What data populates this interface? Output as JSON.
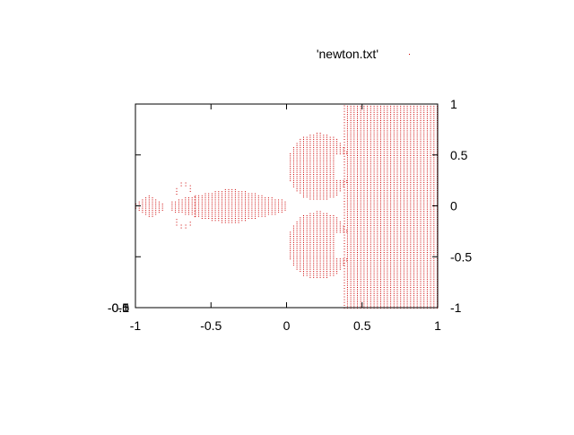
{
  "legend": {
    "label": "'newton.txt'",
    "color": "#cc0000",
    "placement": "top-right"
  },
  "chart_data": {
    "type": "scatter",
    "title": "",
    "xlabel": "",
    "ylabel": "",
    "xlim": [
      -1,
      1
    ],
    "ylim": [
      -1,
      1
    ],
    "grid": false,
    "x_ticks": [
      "-1",
      "-0.5",
      "0",
      "0.5",
      "1"
    ],
    "y_ticks": [
      "-1",
      "-0.5",
      "0",
      "0.5",
      "1"
    ],
    "left_ticks": [
      "-1",
      "-0.5",
      "0",
      "0.5",
      "1"
    ],
    "series": [
      {
        "name": "'newton.txt'",
        "color": "#cc0000",
        "regions": [
          {
            "shape": "rect",
            "x": [
              0.4,
              1.0
            ],
            "y": [
              -1.0,
              1.0
            ],
            "density": "dense"
          },
          {
            "shape": "lobe",
            "x": [
              0.0,
              0.42
            ],
            "y": [
              0.05,
              0.72
            ],
            "density": "medium"
          },
          {
            "shape": "lobe",
            "x": [
              0.0,
              0.42
            ],
            "y": [
              -0.72,
              -0.05
            ],
            "density": "medium"
          },
          {
            "shape": "diamond",
            "x": [
              -0.76,
              0.0
            ],
            "y": [
              -0.18,
              0.18
            ],
            "density": "medium"
          },
          {
            "shape": "diamond",
            "x": [
              -1.0,
              -0.82
            ],
            "y": [
              -0.12,
              0.12
            ],
            "density": "medium"
          },
          {
            "shape": "vline",
            "x": [
              0.38,
              0.39
            ],
            "y": [
              -1.0,
              1.0
            ],
            "density": "sparse"
          },
          {
            "shape": "ring",
            "x": [
              -0.76,
              -0.6
            ],
            "y": [
              -0.24,
              0.24
            ],
            "density": "sparse"
          }
        ]
      }
    ]
  }
}
